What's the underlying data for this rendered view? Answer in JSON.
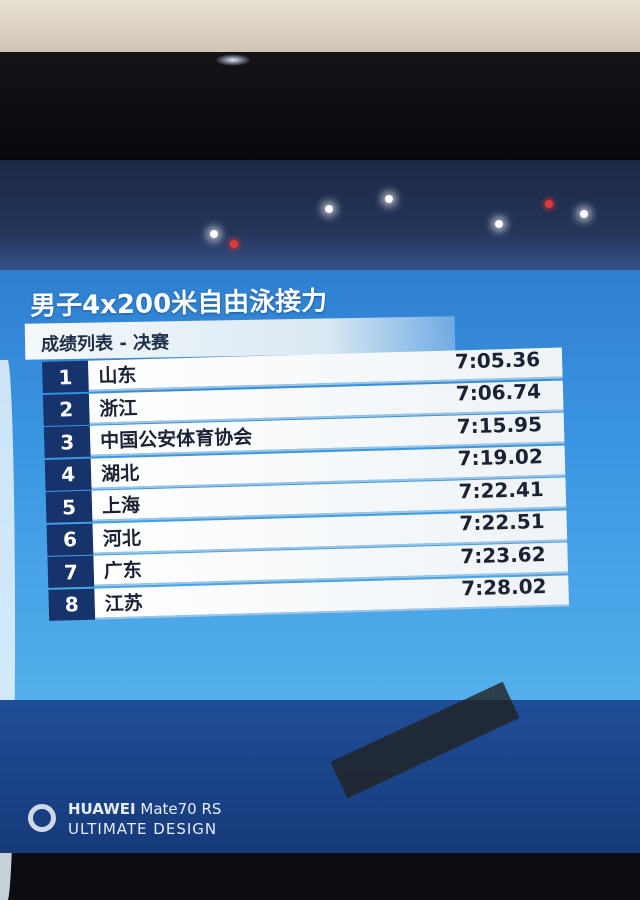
{
  "header": {
    "title": "男子4x200米自由泳接力",
    "subtitle": "成绩列表 - 决赛"
  },
  "results": [
    {
      "rank": "1",
      "team": "山东",
      "time": "7:05.36"
    },
    {
      "rank": "2",
      "team": "浙江",
      "time": "7:06.74"
    },
    {
      "rank": "3",
      "team": "中国公安体育协会",
      "time": "7:15.95"
    },
    {
      "rank": "4",
      "team": "湖北",
      "time": "7:19.02"
    },
    {
      "rank": "5",
      "team": "上海",
      "time": "7:22.41"
    },
    {
      "rank": "6",
      "team": "河北",
      "time": "7:22.51"
    },
    {
      "rank": "7",
      "team": "广东",
      "time": "7:23.62"
    },
    {
      "rank": "8",
      "team": "江苏",
      "time": "7:28.02"
    }
  ],
  "watermark": {
    "brand": "HUAWEI",
    "model": "Mate70 RS",
    "tagline": "ULTIMATE DESIGN"
  },
  "colors": {
    "panel": "#3b96e2",
    "rank_box": "#17336b",
    "row": "#ffffff"
  }
}
